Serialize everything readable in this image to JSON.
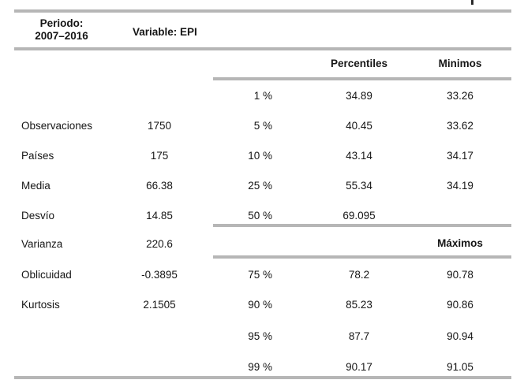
{
  "header": {
    "period_label": "Periodo:",
    "period_value": "2007–2016",
    "variable_label": "Variable: EPI"
  },
  "columns": {
    "percentiles": "Percentiles",
    "minimos": "Minimos",
    "maximos": "Máximos"
  },
  "stats": [
    {
      "label": "Observaciones",
      "value": "1750"
    },
    {
      "label": "Países",
      "value": "175"
    },
    {
      "label": "Media",
      "value": "66.38"
    },
    {
      "label": "Desvío",
      "value": "14.85"
    },
    {
      "label": "Varianza",
      "value": "220.6"
    },
    {
      "label": "Oblicuidad",
      "value": "-0.3895"
    },
    {
      "label": "Kurtosis",
      "value": "2.1505"
    }
  ],
  "percentile_rows": [
    {
      "pct": "1 %",
      "value": "34.89",
      "extreme": "33.26"
    },
    {
      "pct": "5 %",
      "value": "40.45",
      "extreme": "33.62"
    },
    {
      "pct": "10 %",
      "value": "43.14",
      "extreme": "34.17"
    },
    {
      "pct": "25 %",
      "value": "55.34",
      "extreme": "34.19"
    },
    {
      "pct": "50 %",
      "value": "69.095",
      "extreme": ""
    },
    {
      "pct": "75 %",
      "value": "78.2",
      "extreme": "90.78"
    },
    {
      "pct": "90 %",
      "value": "85.23",
      "extreme": "90.86"
    },
    {
      "pct": "95 %",
      "value": "87.7",
      "extreme": "90.94"
    },
    {
      "pct": "99 %",
      "value": "90.17",
      "extreme": "91.05"
    }
  ],
  "colors": {
    "rule": "#b6b6b6",
    "text": "#161616",
    "background": "#ffffff"
  }
}
